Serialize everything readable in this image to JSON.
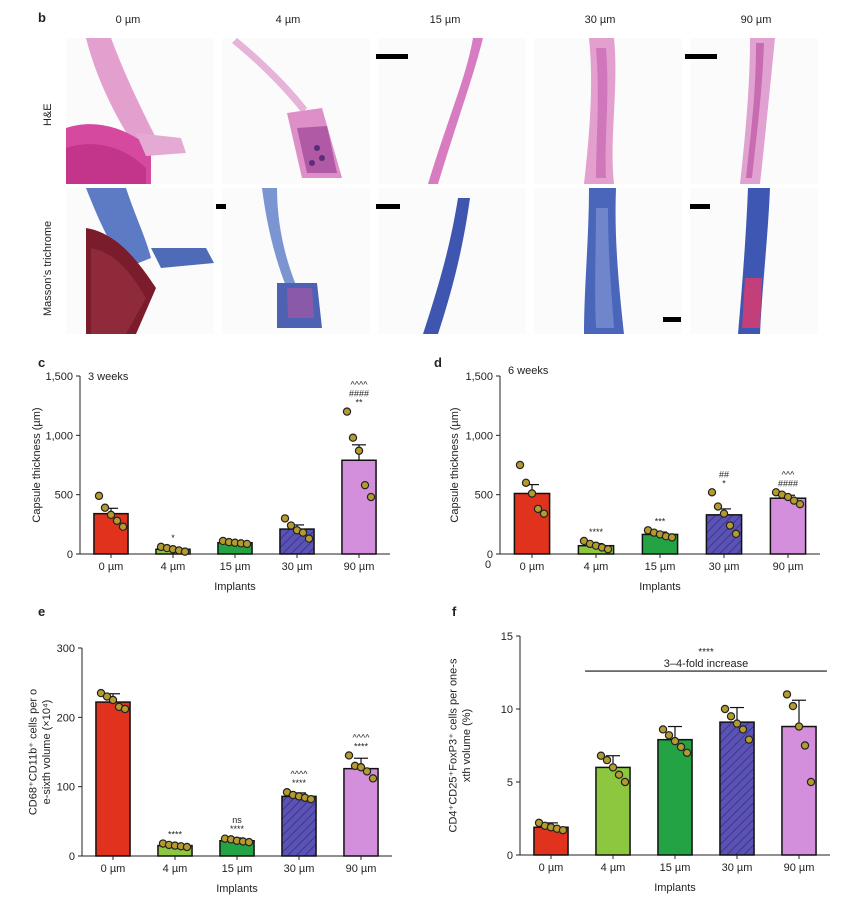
{
  "panel_b": {
    "letter": "b",
    "columns": [
      "0 µm",
      "4 µm",
      "15 µm",
      "30 µm",
      "90 µm"
    ],
    "rows": [
      "H&E",
      "Masson’s trichrome"
    ]
  },
  "chart_data": [
    {
      "id": "c",
      "letter": "c",
      "type": "bar",
      "annotation": "3 weeks",
      "xlabel": "Implants",
      "ylabel": "Capsule thickness (µm)",
      "ylim": [
        0,
        1500
      ],
      "yticks": [
        0,
        500,
        1000,
        1500
      ],
      "ytick_labels": [
        "0",
        "500",
        "1,000",
        "1,500"
      ],
      "categories": [
        "0 µm",
        "4 µm",
        "15 µm",
        "30 µm",
        "90 µm"
      ],
      "values": [
        340,
        40,
        95,
        210,
        790
      ],
      "errors": [
        45,
        12,
        12,
        35,
        130
      ],
      "fills": [
        "#e0321c",
        "#8dc63f",
        "#23a344",
        "#5b53b3",
        "#d38fdc"
      ],
      "hatched": [
        false,
        false,
        false,
        true,
        false
      ],
      "points": [
        [
          490,
          390,
          330,
          280,
          230
        ],
        [
          60,
          50,
          40,
          30,
          20
        ],
        [
          110,
          100,
          95,
          90,
          85
        ],
        [
          300,
          240,
          200,
          180,
          130
        ],
        [
          1200,
          980,
          870,
          580,
          480
        ]
      ],
      "significance": [
        [],
        [
          "*"
        ],
        [],
        [],
        [
          "^^^^",
          "####",
          "**"
        ]
      ]
    },
    {
      "id": "d",
      "letter": "d",
      "type": "bar",
      "annotation": "6 weeks",
      "xlabel": "Implants",
      "ylabel": "Capsule thickness (µm)",
      "ylim": [
        0,
        1500
      ],
      "yticks": [
        0,
        500,
        1000,
        1500
      ],
      "ytick_labels": [
        "0",
        "500",
        "1,000",
        "1,500"
      ],
      "extra_zero_label": "0",
      "categories": [
        "0 µm",
        "4 µm",
        "15 µm",
        "30 µm",
        "90 µm"
      ],
      "values": [
        510,
        70,
        165,
        330,
        470
      ],
      "errors": [
        75,
        18,
        20,
        50,
        25
      ],
      "fills": [
        "#e0321c",
        "#8dc63f",
        "#23a344",
        "#5b53b3",
        "#d38fdc"
      ],
      "hatched": [
        false,
        false,
        false,
        true,
        false
      ],
      "points": [
        [
          750,
          600,
          510,
          380,
          340
        ],
        [
          110,
          85,
          70,
          55,
          40
        ],
        [
          200,
          180,
          165,
          150,
          140
        ],
        [
          520,
          400,
          340,
          240,
          170
        ],
        [
          520,
          500,
          480,
          450,
          420
        ]
      ],
      "significance": [
        [],
        [
          "****"
        ],
        [
          "***"
        ],
        [
          "##",
          "*"
        ],
        [
          "^^^",
          "####"
        ]
      ]
    },
    {
      "id": "e",
      "letter": "e",
      "type": "bar",
      "xlabel": "Implants",
      "ylabel": "CD68⁺CD11b⁺ cells per one-sixth volume (×10⁴)",
      "ylim": [
        0,
        300
      ],
      "yticks": [
        0,
        100,
        200,
        300
      ],
      "ytick_labels": [
        "0",
        "100",
        "200",
        "300"
      ],
      "categories": [
        "0 µm",
        "4 µm",
        "15 µm",
        "30 µm",
        "90 µm"
      ],
      "values": [
        222,
        15,
        22,
        86,
        126
      ],
      "errors": [
        12,
        3,
        4,
        5,
        15
      ],
      "fills": [
        "#e0321c",
        "#8dc63f",
        "#23a344",
        "#5b53b3",
        "#d38fdc"
      ],
      "hatched": [
        false,
        false,
        false,
        true,
        false
      ],
      "points": [
        [
          235,
          230,
          225,
          215,
          212
        ],
        [
          18,
          16,
          15,
          14,
          13
        ],
        [
          25,
          24,
          22,
          21,
          20
        ],
        [
          92,
          88,
          86,
          84,
          82
        ],
        [
          145,
          130,
          128,
          122,
          112
        ]
      ],
      "significance": [
        [],
        [
          "****"
        ],
        [
          "ns",
          "****"
        ],
        [
          "^^^^",
          "****"
        ],
        [
          "^^^^",
          "****"
        ]
      ]
    },
    {
      "id": "f",
      "letter": "f",
      "type": "bar",
      "xlabel": "Implants",
      "ylabel": "CD4⁺CD25⁺FoxP3⁺ cells per one-sixth volume (%)",
      "ylim": [
        0,
        15
      ],
      "yticks": [
        0,
        5,
        10,
        15
      ],
      "ytick_labels": [
        "0",
        "5",
        "10",
        "15"
      ],
      "categories": [
        "0 µm",
        "4 µm",
        "15 µm",
        "30 µm",
        "90 µm"
      ],
      "values": [
        1.9,
        6.0,
        7.9,
        9.1,
        8.8
      ],
      "errors": [
        0.3,
        0.8,
        0.9,
        1.0,
        1.8
      ],
      "fills": [
        "#e0321c",
        "#8dc63f",
        "#23a344",
        "#5b53b3",
        "#d38fdc"
      ],
      "hatched": [
        false,
        false,
        false,
        true,
        false
      ],
      "points": [
        [
          2.2,
          2.0,
          1.9,
          1.8,
          1.7
        ],
        [
          6.8,
          6.5,
          6.0,
          5.5,
          5.0
        ],
        [
          8.6,
          8.2,
          7.8,
          7.4,
          7.0
        ],
        [
          10.0,
          9.5,
          9.0,
          8.6,
          7.9
        ],
        [
          11.0,
          10.2,
          8.8,
          7.5,
          5.0
        ]
      ],
      "significance": [
        [],
        [],
        [],
        [],
        []
      ],
      "bracket": {
        "from": 1,
        "to": 4,
        "stars": "****",
        "label": "3–4-fold increase"
      }
    }
  ]
}
